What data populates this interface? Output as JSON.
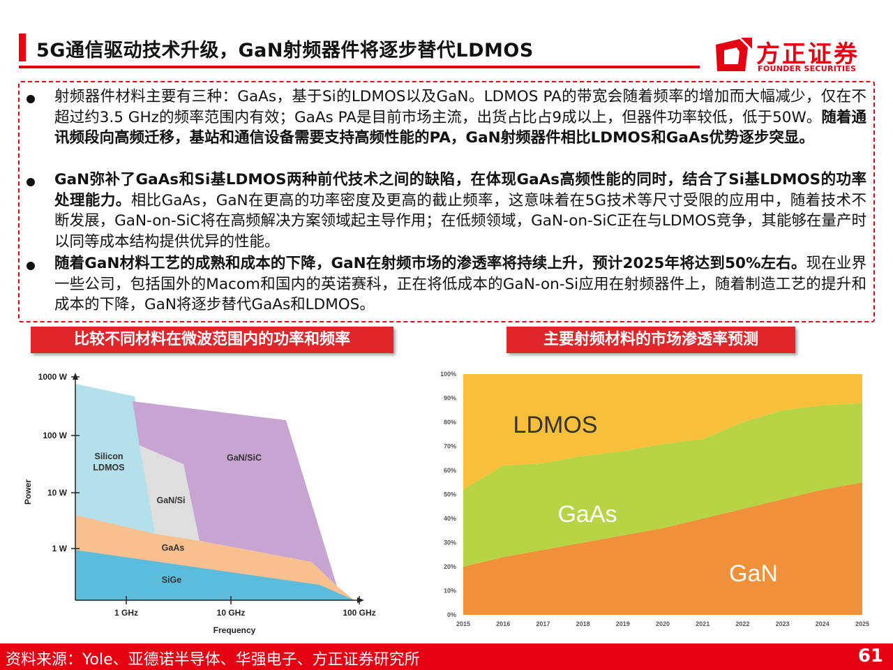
{
  "header": {
    "title": "5G通信驱动技术升级，GaN射频器件将逐步替代LDMOS",
    "logo_name": "方正证券",
    "logo_sub": "FOUNDER SECURITIES"
  },
  "bullets": [
    {
      "normal": "射频器件材料主要有三种：GaAs，基于Si的LDMOS以及GaN。LDMOS PA的带宽会随着频率的增加而大幅减少，仅在不超过约3.5 GHz的频率范围内有效；GaAs PA是目前市场主流，出货占比占9成以上，但器件功率较低，低于50W。",
      "bold": "随着通讯频段向高频迁移，基站和通信设备需要支持高频性能的PA，GaN射频器件相比LDMOS和GaAs优势逐步突显。"
    },
    {
      "bold": "GaN弥补了GaAs和Si基LDMOS两种前代技术之间的缺陷，在体现GaAs高频性能的同时，结合了Si基LDMOS的功率处理能力。",
      "normal": "相比GaAs，GaN在更高的功率密度及更高的截止频率，这意味着在5G技术等尺寸受限的应用中，随着技术不断发展，GaN-on-SiC将在高频解决方案领域起主导作用；在低频领域，GaN-on-SiC正在与LDMOS竞争，其能够在量产时以同等成本结构提供优异的性能。"
    },
    {
      "bold": "随着GaN材料工艺的成熟和成本的下降，GaN在射频市场的渗透率将持续上升，预计2025年将达到50%左右。",
      "normal": "现在业界一些公司，包括国外的Macom和国内的英诺赛科，正在将低成本的GaN-on-Si应用在射频器件上，随着制造工艺的提升和成本的下降，GaN将逐步替代GaAs和LDMOS。"
    }
  ],
  "labels": {
    "left": "比较不同材料在微波范围内的功率和频率",
    "right": "主要射频材料的市场渗透率预测"
  },
  "chart_data": [
    {
      "type": "area",
      "title": "",
      "xlabel": "Frequency",
      "ylabel": "Power",
      "x_ticks": [
        "1 GHz",
        "10 GHz",
        "100 GHz"
      ],
      "y_ticks": [
        "1000 W",
        "100 W",
        "10 W",
        "1 W"
      ],
      "x_scale": "log",
      "y_scale": "log",
      "regions": [
        {
          "name": "Silicon LDMOS",
          "color": "#b3e0ea"
        },
        {
          "name": "GaN/Si",
          "color": "#dedede"
        },
        {
          "name": "GaN/SiC",
          "color": "#c7a4d2"
        },
        {
          "name": "GaAs",
          "color": "#f8c08e"
        },
        {
          "name": "SiGe",
          "color": "#5bbcdc"
        }
      ]
    },
    {
      "type": "area",
      "title": "",
      "x": [
        "2015",
        "2016",
        "2017",
        "2018",
        "2019",
        "2020",
        "2021",
        "2022",
        "2023",
        "2024",
        "2025"
      ],
      "y_ticks": [
        "0%",
        "10%",
        "20%",
        "30%",
        "40%",
        "50%",
        "60%",
        "70%",
        "80%",
        "90%",
        "100%"
      ],
      "ylim": [
        0,
        100
      ],
      "stacked": true,
      "series": [
        {
          "name": "GaN",
          "color": "#f0903a",
          "values": [
            20,
            24,
            27,
            30,
            33,
            36,
            40,
            44,
            48,
            52,
            55
          ]
        },
        {
          "name": "GaAs",
          "color": "#b7d444",
          "values": [
            32,
            38,
            36,
            36,
            35,
            35,
            33,
            36,
            37,
            35,
            33
          ]
        },
        {
          "name": "LDMOS",
          "color": "#f8bf3a",
          "values": [
            48,
            38,
            37,
            34,
            32,
            29,
            27,
            20,
            15,
            13,
            12
          ]
        }
      ]
    }
  ],
  "footer": {
    "source": "资料来源：Yole、亚德诺半导体、华强电子、方正证券研究所",
    "page": "61"
  }
}
